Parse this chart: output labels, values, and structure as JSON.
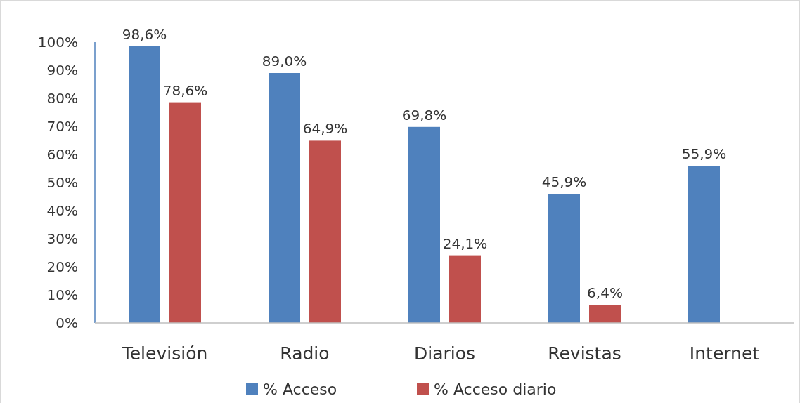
{
  "chart_data": {
    "type": "bar",
    "categories": [
      "Televisión",
      "Radio",
      "Diarios",
      "Revistas",
      "Internet"
    ],
    "series": [
      {
        "name": "% Acceso",
        "color": "#4f81bd",
        "values": [
          98.6,
          89.0,
          69.8,
          45.9,
          55.9
        ],
        "value_labels": [
          "98,6%",
          "89,0%",
          "69,8%",
          "45,9%",
          "55,9%"
        ]
      },
      {
        "name": "% Acceso diario",
        "color": "#c0504d",
        "values": [
          78.6,
          64.9,
          24.1,
          6.4,
          null
        ],
        "value_labels": [
          "78,6%",
          "64,9%",
          "24,1%",
          "6,4%",
          null
        ]
      }
    ],
    "ylim": [
      0,
      100
    ],
    "yticks": [
      {
        "value": 0,
        "label": "0%"
      },
      {
        "value": 10,
        "label": "10%"
      },
      {
        "value": 20,
        "label": "20%"
      },
      {
        "value": 30,
        "label": "30%"
      },
      {
        "value": 40,
        "label": "40%"
      },
      {
        "value": 50,
        "label": "50%"
      },
      {
        "value": 60,
        "label": "60%"
      },
      {
        "value": 70,
        "label": "70%"
      },
      {
        "value": 80,
        "label": "80%"
      },
      {
        "value": 90,
        "label": "90%"
      },
      {
        "value": 100,
        "label": "100%"
      }
    ],
    "grid": false,
    "legend": "bottom"
  }
}
